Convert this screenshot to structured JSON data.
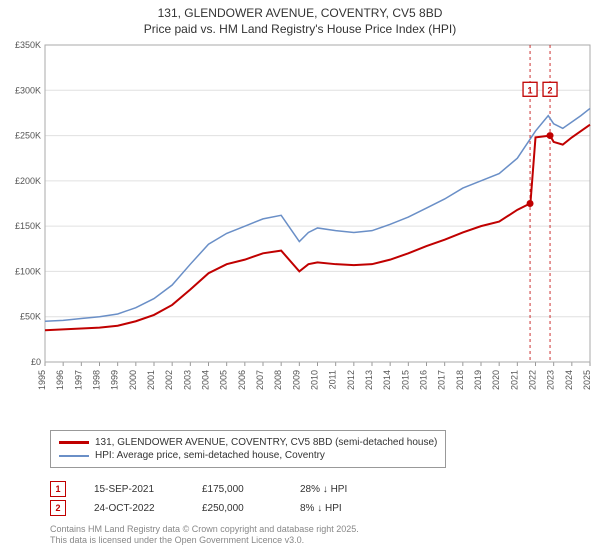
{
  "title_line1": "131, GLENDOWER AVENUE, COVENTRY, CV5 8BD",
  "title_line2": "Price paid vs. HM Land Registry's House Price Index (HPI)",
  "chart": {
    "type": "line",
    "background_color": "#ffffff",
    "plot_border_color": "#999999",
    "grid_color": "#e0e0e0",
    "x_axis": {
      "min": 1995,
      "max": 2025,
      "ticks": [
        1995,
        1996,
        1997,
        1998,
        1999,
        2000,
        2001,
        2002,
        2003,
        2004,
        2005,
        2006,
        2007,
        2008,
        2009,
        2010,
        2011,
        2012,
        2013,
        2014,
        2015,
        2016,
        2017,
        2018,
        2019,
        2020,
        2021,
        2022,
        2023,
        2024,
        2025
      ],
      "tick_fontsize": 9,
      "tick_color": "#555555",
      "tick_rotation": -90
    },
    "y_axis": {
      "min": 0,
      "max": 350000,
      "ticks": [
        0,
        50000,
        100000,
        150000,
        200000,
        250000,
        300000,
        350000
      ],
      "tick_labels": [
        "£0",
        "£50K",
        "£100K",
        "£150K",
        "£200K",
        "£250K",
        "£300K",
        "£350K"
      ],
      "tick_fontsize": 9,
      "tick_color": "#555555"
    },
    "series": [
      {
        "name": "property",
        "label": "131, GLENDOWER AVENUE, COVENTRY, CV5 8BD (semi-detached house)",
        "color": "#c00000",
        "line_width": 2,
        "data": [
          [
            1995,
            35000
          ],
          [
            1996,
            36000
          ],
          [
            1997,
            37000
          ],
          [
            1998,
            38000
          ],
          [
            1999,
            40000
          ],
          [
            2000,
            45000
          ],
          [
            2001,
            52000
          ],
          [
            2002,
            63000
          ],
          [
            2003,
            80000
          ],
          [
            2004,
            98000
          ],
          [
            2005,
            108000
          ],
          [
            2006,
            113000
          ],
          [
            2007,
            120000
          ],
          [
            2008,
            123000
          ],
          [
            2009,
            100000
          ],
          [
            2009.5,
            108000
          ],
          [
            2010,
            110000
          ],
          [
            2011,
            108000
          ],
          [
            2012,
            107000
          ],
          [
            2013,
            108000
          ],
          [
            2014,
            113000
          ],
          [
            2015,
            120000
          ],
          [
            2016,
            128000
          ],
          [
            2017,
            135000
          ],
          [
            2018,
            143000
          ],
          [
            2019,
            150000
          ],
          [
            2020,
            155000
          ],
          [
            2021,
            168000
          ],
          [
            2021.7,
            175000
          ],
          [
            2021.72,
            175000
          ],
          [
            2022.0,
            248000
          ],
          [
            2022.8,
            250000
          ],
          [
            2023,
            243000
          ],
          [
            2023.5,
            240000
          ],
          [
            2024,
            248000
          ],
          [
            2024.5,
            255000
          ],
          [
            2025,
            262000
          ]
        ]
      },
      {
        "name": "hpi",
        "label": "HPI: Average price, semi-detached house, Coventry",
        "color": "#6a8fc7",
        "line_width": 1.5,
        "data": [
          [
            1995,
            45000
          ],
          [
            1996,
            46000
          ],
          [
            1997,
            48000
          ],
          [
            1998,
            50000
          ],
          [
            1999,
            53000
          ],
          [
            2000,
            60000
          ],
          [
            2001,
            70000
          ],
          [
            2002,
            85000
          ],
          [
            2003,
            108000
          ],
          [
            2004,
            130000
          ],
          [
            2005,
            142000
          ],
          [
            2006,
            150000
          ],
          [
            2007,
            158000
          ],
          [
            2008,
            162000
          ],
          [
            2009,
            133000
          ],
          [
            2009.5,
            143000
          ],
          [
            2010,
            148000
          ],
          [
            2011,
            145000
          ],
          [
            2012,
            143000
          ],
          [
            2013,
            145000
          ],
          [
            2014,
            152000
          ],
          [
            2015,
            160000
          ],
          [
            2016,
            170000
          ],
          [
            2017,
            180000
          ],
          [
            2018,
            192000
          ],
          [
            2019,
            200000
          ],
          [
            2020,
            208000
          ],
          [
            2021,
            225000
          ],
          [
            2022,
            255000
          ],
          [
            2022.7,
            272000
          ],
          [
            2023,
            263000
          ],
          [
            2023.5,
            258000
          ],
          [
            2024,
            265000
          ],
          [
            2024.5,
            272000
          ],
          [
            2025,
            280000
          ]
        ]
      }
    ],
    "sale_markers": [
      {
        "n": "1",
        "x": 2021.7,
        "y": 175000,
        "label_y": 300000,
        "color": "#c00000"
      },
      {
        "n": "2",
        "x": 2022.8,
        "y": 250000,
        "label_y": 300000,
        "color": "#c00000"
      }
    ]
  },
  "legend": {
    "property": "131, GLENDOWER AVENUE, COVENTRY, CV5 8BD (semi-detached house)",
    "hpi": "HPI: Average price, semi-detached house, Coventry"
  },
  "sales": [
    {
      "n": "1",
      "date": "15-SEP-2021",
      "price": "£175,000",
      "delta": "28% ↓ HPI"
    },
    {
      "n": "2",
      "date": "24-OCT-2022",
      "price": "£250,000",
      "delta": "8% ↓ HPI"
    }
  ],
  "attribution_line1": "Contains HM Land Registry data © Crown copyright and database right 2025.",
  "attribution_line2": "This data is licensed under the Open Government Licence v3.0."
}
